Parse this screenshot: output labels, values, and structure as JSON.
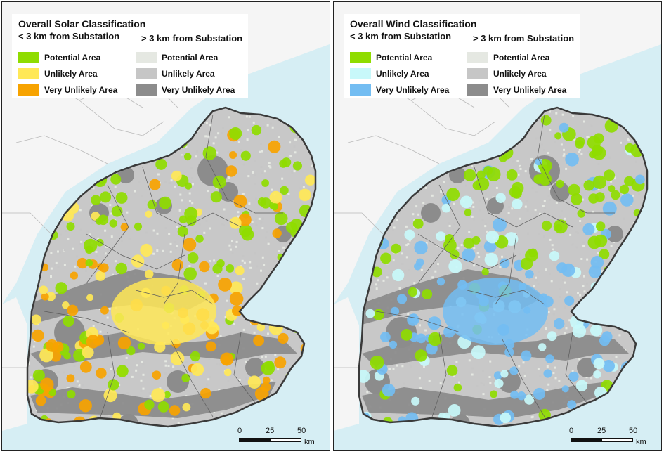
{
  "colors": {
    "sea": "#d6eef4",
    "land_outside": "#f5f5f5",
    "region_base": "#c8c8c8",
    "boundary": "#3a3a3a",
    "solar_potential": "#8fdc00",
    "solar_unlikely": "#ffe857",
    "solar_very_unlikely": "#f7a300",
    "wind_potential": "#8fdc00",
    "wind_unlikely": "#c8f8fa",
    "wind_very_unlikely": "#73bdf2",
    "far_potential": "#e5e8e2",
    "far_unlikely": "#c6c6c6",
    "far_very_unlikely": "#8c8c8c"
  },
  "maps": [
    {
      "id": "solar",
      "title": "Overall Solar Classification",
      "near_heading": "< 3 km from Substation",
      "far_heading": "> 3 km from Substation",
      "near_items": [
        {
          "label": "Potential Area",
          "color": "#8fdc00"
        },
        {
          "label": "Unlikely Area",
          "color": "#ffe857"
        },
        {
          "label": "Very Unlikely Area",
          "color": "#f7a300"
        }
      ],
      "far_items": [
        {
          "label": "Potential Area",
          "color": "#e5e8e2"
        },
        {
          "label": "Unlikely Area",
          "color": "#c6c6c6"
        },
        {
          "label": "Very Unlikely Area",
          "color": "#8c8c8c"
        }
      ],
      "scale": {
        "ticks": [
          "0",
          "25",
          "50"
        ],
        "unit": "km"
      }
    },
    {
      "id": "wind",
      "title": "Overall Wind Classification",
      "near_heading": "< 3 km from Substation",
      "far_heading": "> 3 km from Substation",
      "near_items": [
        {
          "label": "Potential Area",
          "color": "#8fdc00"
        },
        {
          "label": "Unlikely Area",
          "color": "#c8f8fa"
        },
        {
          "label": "Very Unlikely Area",
          "color": "#73bdf2"
        }
      ],
      "far_items": [
        {
          "label": "Potential Area",
          "color": "#e5e8e2"
        },
        {
          "label": "Unlikely Area",
          "color": "#c6c6c6"
        },
        {
          "label": "Very Unlikely Area",
          "color": "#8c8c8c"
        }
      ],
      "scale": {
        "ticks": [
          "0",
          "25",
          "50"
        ],
        "unit": "km"
      }
    }
  ]
}
